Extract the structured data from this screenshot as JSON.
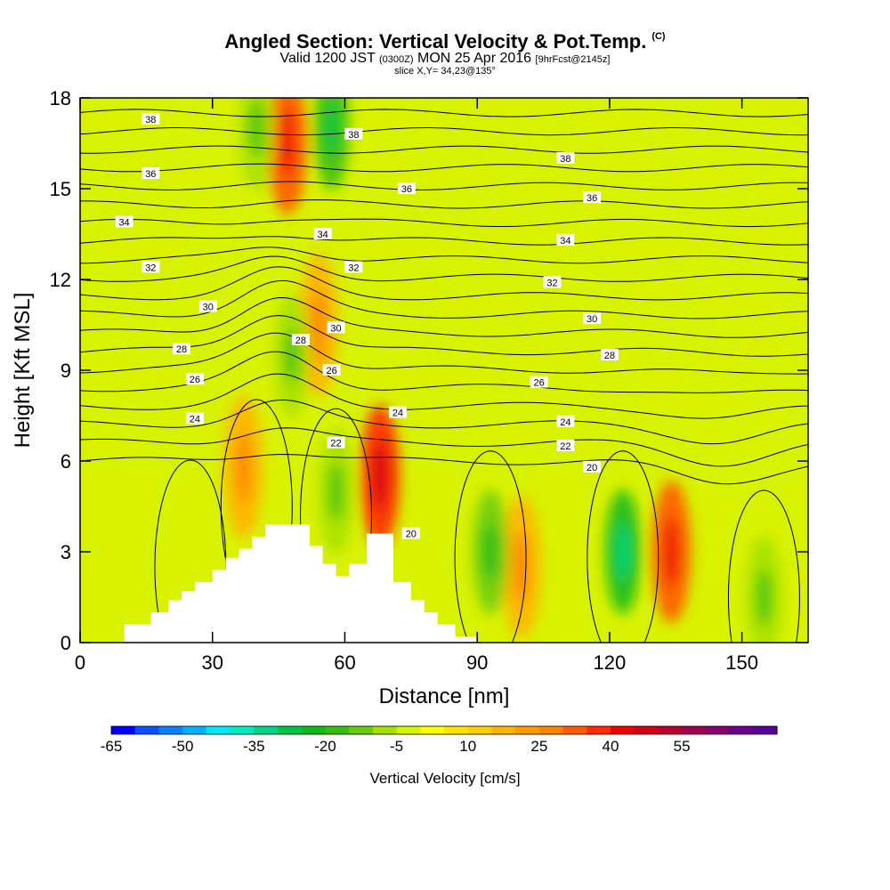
{
  "chart_data": {
    "type": "heatmap",
    "title": "Angled Section: Vertical Velocity & Pot.Temp.",
    "title_mark": "(C)",
    "subtitle_main": "Valid 1200 JST",
    "subtitle_utc": "(0300Z)",
    "subtitle_date": "MON 25 Apr 2016",
    "subtitle_fcst": "[9hrFcst@2145z]",
    "slice_label": "slice X,Y= 34,23@135°",
    "xlabel": "Distance [nm]",
    "ylabel": "Height [Kft MSL]",
    "xlim": [
      0,
      165
    ],
    "ylim": [
      0,
      18
    ],
    "x_ticks": [
      "0",
      "30",
      "60",
      "90",
      "120",
      "150"
    ],
    "y_ticks": [
      "0",
      "3",
      "6",
      "9",
      "12",
      "15",
      "18"
    ],
    "colorbar": {
      "title": "Vertical Velocity [cm/s]",
      "labels": [
        "-65",
        "-50",
        "-35",
        "-20",
        "-5",
        "10",
        "25",
        "40",
        "55"
      ],
      "colors": [
        "#0000ff",
        "#0a52ff",
        "#0a82ff",
        "#00b0ff",
        "#00e6ff",
        "#00ebbe",
        "#00d387",
        "#00c446",
        "#10b81c",
        "#35be12",
        "#68cb0f",
        "#a5e000",
        "#d2f500",
        "#ffff00",
        "#ffe400",
        "#ffcd00",
        "#ffb400",
        "#ff9b00",
        "#ff8200",
        "#ff5a00",
        "#ff2a00",
        "#ed0000",
        "#d20014",
        "#b8002e",
        "#9f0050",
        "#86006e",
        "#6d008d",
        "#570094"
      ]
    },
    "updrafts": [
      {
        "x": 37,
        "z": 5.8,
        "value": 12
      },
      {
        "x": 47,
        "z": 16.5,
        "value": 25
      },
      {
        "x": 54,
        "z": 10.5,
        "value": 12
      },
      {
        "x": 68,
        "z": 5.5,
        "value": 30
      },
      {
        "x": 100,
        "z": 2.5,
        "value": 12
      },
      {
        "x": 134,
        "z": 3.0,
        "value": 25
      }
    ],
    "downdrafts": [
      {
        "x": 40,
        "z": 17,
        "value": -15
      },
      {
        "x": 57,
        "z": 17,
        "value": -25
      },
      {
        "x": 58,
        "z": 5,
        "value": -15
      },
      {
        "x": 48,
        "z": 9.5,
        "value": -15
      },
      {
        "x": 93,
        "z": 3,
        "value": -20
      },
      {
        "x": 123,
        "z": 3,
        "value": -30
      },
      {
        "x": 155,
        "z": 1.5,
        "value": -15
      }
    ],
    "isentropes": {
      "unit": "C",
      "levels": [
        20,
        21,
        22,
        23,
        24,
        25,
        26,
        27,
        28,
        29,
        30,
        31,
        32,
        33,
        34,
        35,
        36,
        37,
        38,
        39
      ],
      "labels": [
        {
          "text": "38",
          "x": 16,
          "z": 17.3
        },
        {
          "text": "38",
          "x": 62,
          "z": 16.8
        },
        {
          "text": "38",
          "x": 110,
          "z": 16.0
        },
        {
          "text": "36",
          "x": 16,
          "z": 15.5
        },
        {
          "text": "36",
          "x": 74,
          "z": 15.0
        },
        {
          "text": "36",
          "x": 116,
          "z": 14.7
        },
        {
          "text": "34",
          "x": 10,
          "z": 13.9
        },
        {
          "text": "34",
          "x": 55,
          "z": 13.5
        },
        {
          "text": "34",
          "x": 110,
          "z": 13.3
        },
        {
          "text": "32",
          "x": 16,
          "z": 12.4
        },
        {
          "text": "32",
          "x": 62,
          "z": 12.4
        },
        {
          "text": "32",
          "x": 107,
          "z": 11.9
        },
        {
          "text": "30",
          "x": 29,
          "z": 11.1
        },
        {
          "text": "30",
          "x": 58,
          "z": 10.4
        },
        {
          "text": "30",
          "x": 116,
          "z": 10.7
        },
        {
          "text": "28",
          "x": 23,
          "z": 9.7
        },
        {
          "text": "28",
          "x": 50,
          "z": 10.0
        },
        {
          "text": "28",
          "x": 120,
          "z": 9.5
        },
        {
          "text": "26",
          "x": 26,
          "z": 8.7
        },
        {
          "text": "26",
          "x": 57,
          "z": 9.0
        },
        {
          "text": "26",
          "x": 104,
          "z": 8.6
        },
        {
          "text": "24",
          "x": 26,
          "z": 7.4
        },
        {
          "text": "24",
          "x": 72,
          "z": 7.6
        },
        {
          "text": "24",
          "x": 110,
          "z": 7.3
        },
        {
          "text": "22",
          "x": 58,
          "z": 6.6
        },
        {
          "text": "22",
          "x": 110,
          "z": 6.5
        },
        {
          "text": "20",
          "x": 116,
          "z": 5.8
        },
        {
          "text": "20",
          "x": 75,
          "z": 3.6
        }
      ]
    },
    "terrain": {
      "x": [
        0,
        10,
        10,
        16,
        16,
        20,
        20,
        23,
        23,
        26,
        26,
        30,
        30,
        33,
        33,
        36,
        36,
        39,
        39,
        42,
        42,
        52,
        52,
        55,
        55,
        58,
        58,
        61,
        61,
        65,
        65,
        71,
        71,
        75,
        75,
        78,
        78,
        81,
        81,
        85,
        85,
        90,
        90,
        165
      ],
      "z": [
        0,
        0,
        0.6,
        0.6,
        1.0,
        1.0,
        1.4,
        1.4,
        1.7,
        1.7,
        2.0,
        2.0,
        2.4,
        2.4,
        2.8,
        2.8,
        3.1,
        3.1,
        3.5,
        3.5,
        3.9,
        3.9,
        3.2,
        3.2,
        2.6,
        2.6,
        2.2,
        2.2,
        2.6,
        2.6,
        3.6,
        3.6,
        2.0,
        2.0,
        1.4,
        1.4,
        1.0,
        1.0,
        0.6,
        0.6,
        0.2,
        0.2,
        0,
        0
      ]
    }
  }
}
